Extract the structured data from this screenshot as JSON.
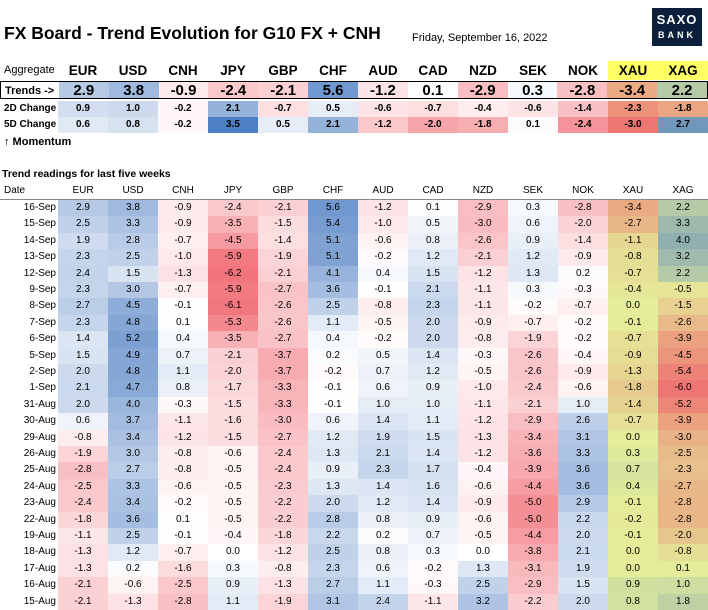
{
  "title": "FX Board - Trend Evolution for G10 FX + CNH",
  "date": "Friday, September 16, 2022",
  "logo": {
    "line1": "SAXO",
    "line2": "BANK"
  },
  "aggregate": {
    "label": "Aggregate",
    "currencies": [
      "EUR",
      "USD",
      "CNH",
      "JPY",
      "GBP",
      "CHF",
      "AUD",
      "CAD",
      "NZD",
      "SEK",
      "NOK",
      "XAU",
      "XAG"
    ],
    "trends_label": "Trends ->",
    "trends": [
      "2.9",
      "3.8",
      "-0.9",
      "-2.4",
      "-2.1",
      "5.6",
      "-1.2",
      "0.1",
      "-2.9",
      "0.3",
      "-2.8",
      "-3.4",
      "2.2"
    ],
    "change_2d_label": "2D Change",
    "change_2d": [
      "0.9",
      "1.0",
      "-0.2",
      "2.1",
      "-0.7",
      "0.5",
      "-0.6",
      "-0.7",
      "-0.4",
      "-0.6",
      "-1.4",
      "-2.3",
      "-1.8"
    ],
    "change_5d_label": "5D Change",
    "change_5d": [
      "0.6",
      "0.8",
      "-0.2",
      "3.5",
      "0.5",
      "2.1",
      "-1.2",
      "-2.0",
      "-1.8",
      "0.1",
      "-2.4",
      "-3.0",
      "2.7"
    ],
    "momentum_label": "↑ Momentum"
  },
  "readings": {
    "title": "Trend readings for last five weeks",
    "date_header": "Date",
    "currencies": [
      "EUR",
      "USD",
      "CNH",
      "JPY",
      "GBP",
      "CHF",
      "AUD",
      "CAD",
      "NZD",
      "SEK",
      "NOK",
      "XAU",
      "XAG"
    ],
    "rows": [
      {
        "date": "16-Sep",
        "values": [
          "2.9",
          "3.8",
          "-0.9",
          "-2.4",
          "-2.1",
          "5.6",
          "-1.2",
          "0.1",
          "-2.9",
          "0.3",
          "-2.8",
          "-3.4",
          "2.2"
        ]
      },
      {
        "date": "15-Sep",
        "values": [
          "2.5",
          "3.3",
          "-0.9",
          "-3.5",
          "-1.5",
          "5.4",
          "-1.0",
          "0.5",
          "-3.0",
          "0.6",
          "-2.0",
          "-2.7",
          "3.3"
        ]
      },
      {
        "date": "14-Sep",
        "values": [
          "1.9",
          "2.8",
          "-0.7",
          "-4.5",
          "-1.4",
          "5.1",
          "-0.6",
          "0.8",
          "-2.6",
          "0.9",
          "-1.4",
          "-1.1",
          "4.0"
        ]
      },
      {
        "date": "13-Sep",
        "values": [
          "2.3",
          "2.5",
          "-1.0",
          "-5.9",
          "-1.9",
          "5.1",
          "-0.2",
          "1.2",
          "-2.1",
          "1.2",
          "-0.9",
          "-0.8",
          "3.2"
        ]
      },
      {
        "date": "12-Sep",
        "values": [
          "2.4",
          "1.5",
          "-1.3",
          "-6.2",
          "-2.1",
          "4.1",
          "0.4",
          "1.5",
          "-1.2",
          "1.3",
          "0.2",
          "-0.7",
          "2.2"
        ]
      },
      {
        "date": "9-Sep",
        "values": [
          "2.3",
          "3.0",
          "-0.7",
          "-5.9",
          "-2.7",
          "3.6",
          "-0.1",
          "2.1",
          "-1.1",
          "0.3",
          "-0.3",
          "-0.4",
          "-0.5"
        ]
      },
      {
        "date": "8-Sep",
        "values": [
          "2.7",
          "4.5",
          "-0.1",
          "-6.1",
          "-2.6",
          "2.5",
          "-0.8",
          "2.3",
          "-1.1",
          "-0.2",
          "-0.7",
          "0.0",
          "-1.5"
        ]
      },
      {
        "date": "7-Sep",
        "values": [
          "2.3",
          "4.8",
          "0.1",
          "-5.3",
          "-2.6",
          "1.1",
          "-0.5",
          "2.0",
          "-0.9",
          "-0.7",
          "-0.2",
          "-0.1",
          "-2.6"
        ]
      },
      {
        "date": "6-Sep",
        "values": [
          "1.4",
          "5.2",
          "0.4",
          "-3.5",
          "-2.7",
          "0.4",
          "-0.2",
          "2.0",
          "-0.8",
          "-1.9",
          "-0.2",
          "-0.7",
          "-3.9"
        ]
      },
      {
        "date": "5-Sep",
        "values": [
          "1.5",
          "4.9",
          "0.7",
          "-2.1",
          "-3.7",
          "0.2",
          "0.5",
          "1.4",
          "-0.3",
          "-2.6",
          "-0.4",
          "-0.9",
          "-4.5"
        ]
      },
      {
        "date": "2-Sep",
        "values": [
          "2.0",
          "4.8",
          "1.1",
          "-2.0",
          "-3.7",
          "-0.2",
          "0.7",
          "1.2",
          "-0.5",
          "-2.6",
          "-0.9",
          "-1.3",
          "-5.4"
        ]
      },
      {
        "date": "1-Sep",
        "values": [
          "2.1",
          "4.7",
          "0.8",
          "-1.7",
          "-3.3",
          "-0.1",
          "0.6",
          "0.9",
          "-1.0",
          "-2.4",
          "-0.6",
          "-1.8",
          "-6.0"
        ]
      },
      {
        "date": "31-Aug",
        "values": [
          "2.0",
          "4.0",
          "-0.3",
          "-1.5",
          "-3.3",
          "-0.1",
          "1.0",
          "1.0",
          "-1.1",
          "-2.1",
          "1.0",
          "-1.4",
          "-5.2"
        ]
      },
      {
        "date": "30-Aug",
        "values": [
          "0.6",
          "3.7",
          "-1.1",
          "-1.6",
          "-3.0",
          "0.6",
          "1.4",
          "1.1",
          "-1.2",
          "-2.9",
          "2.6",
          "-0.7",
          "-3.9"
        ]
      },
      {
        "date": "29-Aug",
        "values": [
          "-0.8",
          "3.4",
          "-1.2",
          "-1.5",
          "-2.7",
          "1.2",
          "1.9",
          "1.5",
          "-1.3",
          "-3.4",
          "3.1",
          "0.0",
          "-3.0"
        ]
      },
      {
        "date": "26-Aug",
        "values": [
          "-1.9",
          "3.0",
          "-0.8",
          "-0.6",
          "-2.4",
          "1.3",
          "2.1",
          "1.4",
          "-1.2",
          "-3.6",
          "3.3",
          "0.3",
          "-2.5"
        ]
      },
      {
        "date": "25-Aug",
        "values": [
          "-2.8",
          "2.7",
          "-0.8",
          "-0.5",
          "-2.4",
          "0.9",
          "2.3",
          "1.7",
          "-0.4",
          "-3.9",
          "3.6",
          "0.7",
          "-2.3"
        ]
      },
      {
        "date": "24-Aug",
        "values": [
          "-2.5",
          "3.3",
          "-0.6",
          "-0.5",
          "-2.3",
          "1.3",
          "1.4",
          "1.6",
          "-0.6",
          "-4.4",
          "3.6",
          "0.4",
          "-2.7"
        ]
      },
      {
        "date": "23-Aug",
        "values": [
          "-2.4",
          "3.4",
          "-0.2",
          "-0.5",
          "-2.2",
          "2.0",
          "1.2",
          "1.4",
          "-0.9",
          "-5.0",
          "2.9",
          "-0.1",
          "-2.8"
        ]
      },
      {
        "date": "22-Aug",
        "values": [
          "-1.8",
          "3.6",
          "0.1",
          "-0.5",
          "-2.2",
          "2.8",
          "0.8",
          "0.9",
          "-0.6",
          "-5.0",
          "2.2",
          "-0.2",
          "-2.8"
        ]
      },
      {
        "date": "19-Aug",
        "values": [
          "-1.1",
          "2.5",
          "-0.1",
          "-0.4",
          "-1.8",
          "2.2",
          "0.2",
          "0.7",
          "-0.5",
          "-4.4",
          "2.0",
          "-0.1",
          "-2.0"
        ]
      },
      {
        "date": "18-Aug",
        "values": [
          "-1.3",
          "1.2",
          "-0.7",
          "0.0",
          "-1.2",
          "2.5",
          "0.8",
          "0.3",
          "0.0",
          "-3.8",
          "2.1",
          "0.0",
          "-0.8"
        ]
      },
      {
        "date": "17-Aug",
        "values": [
          "-1.3",
          "0.2",
          "-1.6",
          "0.3",
          "-0.8",
          "2.3",
          "0.6",
          "-0.2",
          "1.3",
          "-3.1",
          "1.9",
          "0.0",
          "0.1"
        ]
      },
      {
        "date": "16-Aug",
        "values": [
          "-2.1",
          "-0.6",
          "-2.5",
          "0.9",
          "-1.3",
          "2.7",
          "1.1",
          "-0.3",
          "2.5",
          "-2.9",
          "1.5",
          "0.9",
          "1.0"
        ]
      },
      {
        "date": "15-Aug",
        "values": [
          "-2.1",
          "-1.3",
          "-2.8",
          "1.1",
          "-1.9",
          "3.1",
          "2.4",
          "-1.1",
          "3.2",
          "-2.2",
          "2.0",
          "0.8",
          "1.8"
        ]
      }
    ]
  },
  "colors": {
    "positive": "#4f7fc3",
    "negative": "#f0626b",
    "gold_header": "#ffff66",
    "gold_column": "#e4ee9a",
    "logo_bg": "#0b1f3a"
  }
}
